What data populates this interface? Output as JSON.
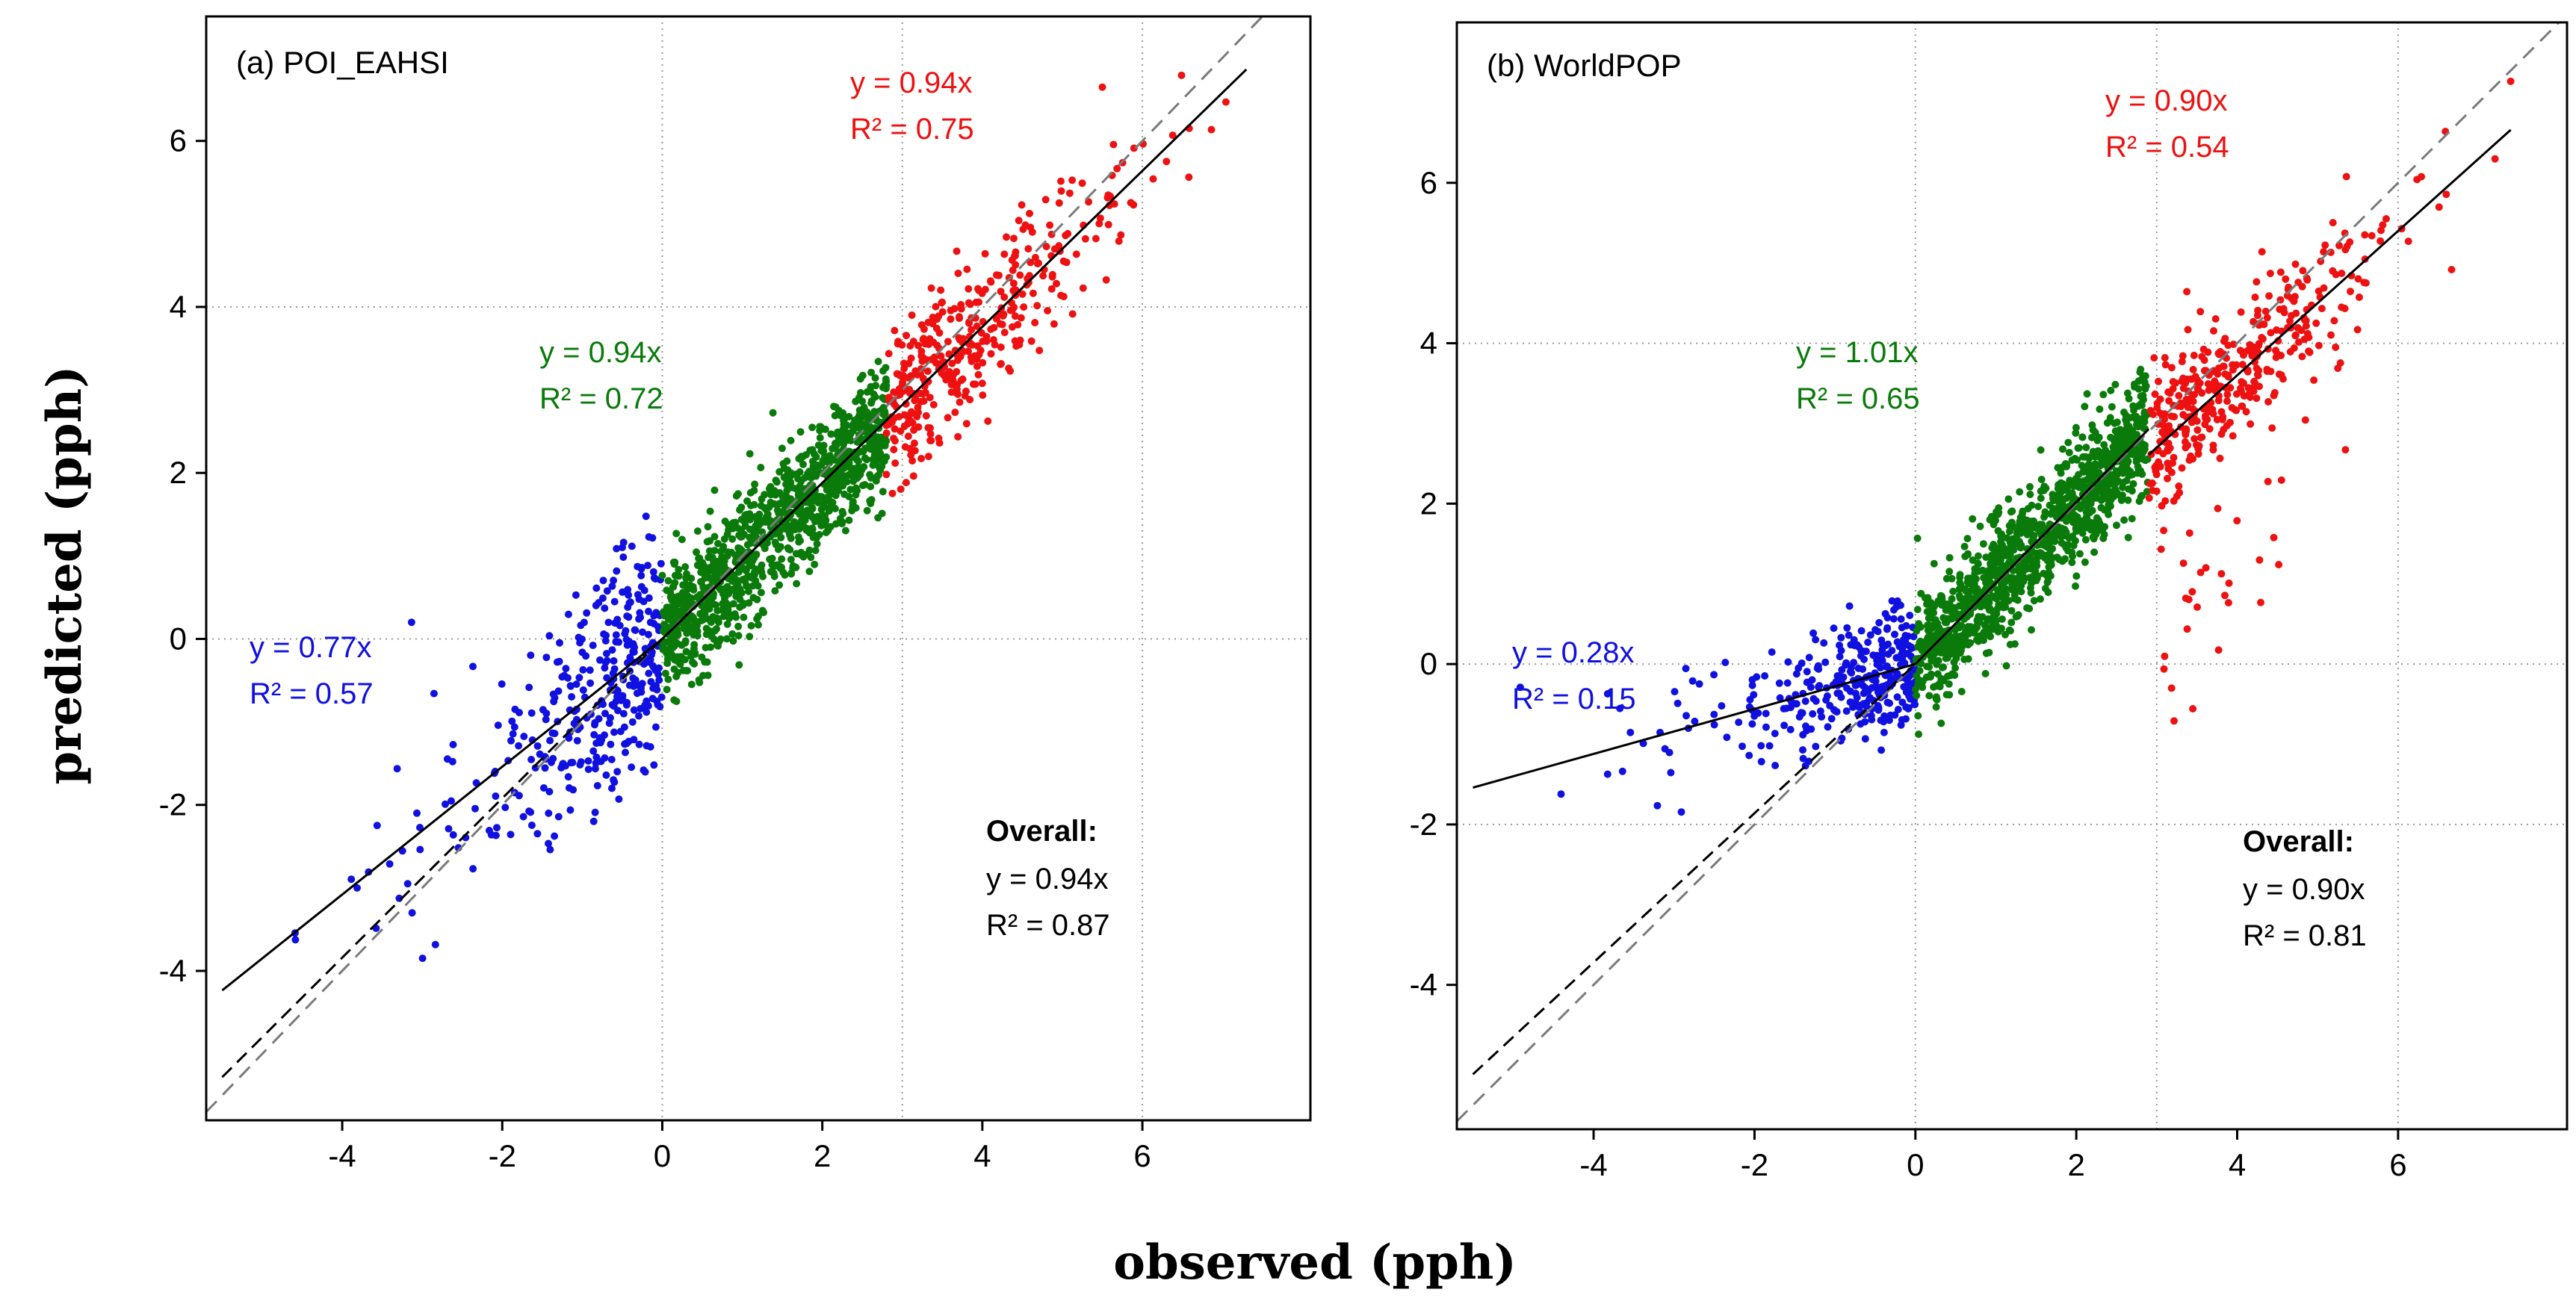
{
  "figure": {
    "xlabel": "observed (pph)",
    "ylabel": "predicted (pph)"
  },
  "colors": {
    "low": "#1010e0",
    "mid": "#0a7a0a",
    "high": "#ee1111",
    "fit_line": "#000000",
    "identity_line": "#7a7a7a",
    "grid": "#9a9a9a"
  },
  "chart_data": [
    {
      "type": "scatter",
      "panel": "a",
      "title": "(a) POI_EAHSI",
      "xlabel": "observed (pph)",
      "ylabel": "predicted (pph)",
      "xlim": [
        -5.7,
        8.1
      ],
      "ylim": [
        -5.8,
        7.5
      ],
      "xticks": [
        -4,
        -2,
        0,
        2,
        4,
        6
      ],
      "yticks": [
        -4,
        -2,
        0,
        2,
        4,
        6
      ],
      "grid": "dotted at 0 (x), 3 and 6 (x); 0 and 4 (y)",
      "seed": 11,
      "groups": [
        {
          "name": "low",
          "x_range": [
            -5.5,
            0.0
          ],
          "n": 360,
          "slope": 0.77,
          "r2": 0.57,
          "eq": "y = 0.77x",
          "r2_text": "R² = 0.57"
        },
        {
          "name": "mid",
          "x_range": [
            0.0,
            2.8
          ],
          "n": 1100,
          "slope": 0.94,
          "r2": 0.72,
          "eq": "y = 0.94x",
          "r2_text": "R² = 0.72"
        },
        {
          "name": "high",
          "x_range": [
            2.8,
            7.3
          ],
          "n": 380,
          "slope": 0.94,
          "r2": 0.75,
          "eq": "y = 0.94x",
          "r2_text": "R² = 0.75"
        }
      ],
      "overall": {
        "label": "Overall:",
        "eq": "y = 0.94x",
        "r2_text": "R² = 0.87",
        "slope": 0.94,
        "r2": 0.87
      },
      "fit_line_range": [
        -5.5,
        7.3
      ],
      "dashed_line_slope": 0.96
    },
    {
      "type": "scatter",
      "panel": "b",
      "title": "(b) WorldPOP",
      "xlabel": "observed (pph)",
      "ylabel": "predicted (pph)",
      "xlim": [
        -5.7,
        8.1
      ],
      "ylim": [
        -5.8,
        8.0
      ],
      "xticks": [
        -4,
        -2,
        0,
        2,
        4,
        6
      ],
      "yticks": [
        -4,
        -2,
        0,
        2,
        4,
        6
      ],
      "grid": "dotted at 0 (x), 3 and 6 (x); 0, 4 and -2 (y)",
      "seed": 29,
      "groups": [
        {
          "name": "low",
          "x_range": [
            -5.5,
            0.0
          ],
          "n": 330,
          "slope": 0.28,
          "r2": 0.15,
          "eq": "y = 0.28x",
          "r2_text": "R² = 0.15"
        },
        {
          "name": "mid",
          "x_range": [
            0.0,
            2.9
          ],
          "n": 1200,
          "slope": 1.01,
          "r2": 0.65,
          "eq": "y = 1.01x",
          "r2_text": "R² = 0.65"
        },
        {
          "name": "high",
          "x_range": [
            2.9,
            7.4
          ],
          "n": 420,
          "slope": 0.9,
          "r2": 0.54,
          "eq": "y = 0.90x",
          "r2_text": "R² = 0.54"
        }
      ],
      "overall": {
        "label": "Overall:",
        "eq": "y = 0.90x",
        "r2_text": "R² = 0.81",
        "slope": 0.9,
        "r2": 0.81
      },
      "fit_line_range": [
        -5.5,
        7.4
      ],
      "dashed_line_slope": 0.93
    }
  ]
}
